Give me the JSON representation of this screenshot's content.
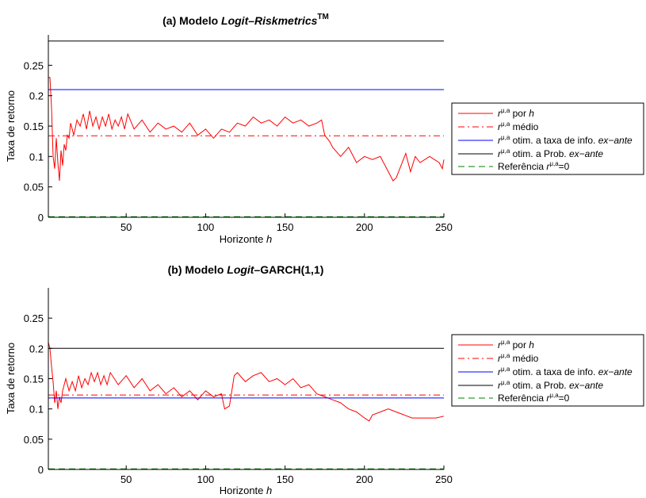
{
  "charts": [
    {
      "title_prefix": "(a) Modelo ",
      "title_italic": "Logit–Riskmetrics",
      "title_suffix": "",
      "title_sup": "TM"
    },
    {
      "title_prefix": "(b) Modelo ",
      "title_italic": "Logit",
      "title_suffix": "–GARCH(1,1)",
      "title_sup": ""
    }
  ],
  "legend": {
    "r_main": "r",
    "r_sup": "μ,a",
    "entries": [
      {
        "pre": "",
        "text": " por ",
        "ital": "h",
        "post": ""
      },
      {
        "pre": "",
        "text": " médio",
        "ital": "",
        "post": ""
      },
      {
        "pre": "",
        "text": " otim. a taxa de info. ",
        "ital": "ex−ante",
        "post": ""
      },
      {
        "pre": "",
        "text": " otim. a Prob. ",
        "ital": "ex−ante",
        "post": ""
      },
      {
        "pre": "Referência ",
        "text": "",
        "ital": "",
        "post": "=0"
      }
    ]
  },
  "colors": {
    "por_h": "#ff0000",
    "medio": "#ff0000",
    "info": "#0000ff",
    "prob": "#000000",
    "ref": "#008000"
  },
  "chart_data": [
    {
      "type": "line",
      "xlabel": "Horizonte",
      "xlabel_italic": "h",
      "ylabel": "Taxa de retorno",
      "xlim": [
        1,
        250
      ],
      "ylim": [
        0,
        0.3
      ],
      "xticks": [
        50,
        100,
        150,
        200,
        250
      ],
      "yticks": [
        0,
        0.05,
        0.1,
        0.15,
        0.2,
        0.25
      ],
      "ytick_labels": [
        "0",
        "0.05",
        "0.1",
        "0.15",
        "0.2",
        "0.25"
      ],
      "series": [
        {
          "key": "por_h",
          "style": "solid",
          "x": [
            1,
            2,
            3,
            4,
            5,
            6,
            7,
            8,
            9,
            10,
            11,
            12,
            13,
            14,
            15,
            17,
            19,
            21,
            23,
            25,
            27,
            29,
            31,
            33,
            35,
            37,
            39,
            41,
            43,
            45,
            47,
            49,
            51,
            55,
            60,
            65,
            70,
            75,
            80,
            85,
            90,
            95,
            100,
            105,
            110,
            115,
            120,
            125,
            130,
            135,
            140,
            145,
            150,
            155,
            160,
            165,
            170,
            173,
            175,
            178,
            180,
            185,
            190,
            195,
            200,
            205,
            210,
            215,
            218,
            220,
            223,
            226,
            229,
            232,
            235,
            238,
            241,
            244,
            247,
            249,
            250
          ],
          "y": [
            0.23,
            0.23,
            0.18,
            0.1,
            0.08,
            0.13,
            0.09,
            0.06,
            0.11,
            0.085,
            0.12,
            0.11,
            0.135,
            0.13,
            0.155,
            0.135,
            0.16,
            0.15,
            0.17,
            0.145,
            0.175,
            0.15,
            0.165,
            0.145,
            0.165,
            0.15,
            0.17,
            0.145,
            0.16,
            0.15,
            0.165,
            0.145,
            0.17,
            0.145,
            0.16,
            0.14,
            0.155,
            0.145,
            0.15,
            0.14,
            0.155,
            0.135,
            0.145,
            0.13,
            0.145,
            0.14,
            0.155,
            0.15,
            0.165,
            0.155,
            0.16,
            0.15,
            0.165,
            0.155,
            0.16,
            0.15,
            0.155,
            0.16,
            0.135,
            0.125,
            0.115,
            0.1,
            0.115,
            0.09,
            0.1,
            0.095,
            0.1,
            0.075,
            0.06,
            0.065,
            0.085,
            0.105,
            0.075,
            0.1,
            0.09,
            0.095,
            0.1,
            0.095,
            0.09,
            0.08,
            0.095
          ]
        },
        {
          "key": "medio",
          "style": "dashdot",
          "x": [
            1,
            250
          ],
          "y": [
            0.134,
            0.134
          ]
        },
        {
          "key": "info",
          "style": "solid",
          "x": [
            1,
            250
          ],
          "y": [
            0.21,
            0.21
          ]
        },
        {
          "key": "prob",
          "style": "solid",
          "x": [
            1,
            250
          ],
          "y": [
            0.29,
            0.29
          ]
        },
        {
          "key": "ref",
          "style": "dashed",
          "x": [
            1,
            250
          ],
          "y": [
            0.001,
            0.001
          ]
        }
      ]
    },
    {
      "type": "line",
      "xlabel": "Horizonte",
      "xlabel_italic": "h",
      "ylabel": "Taxa de retorno",
      "xlim": [
        1,
        250
      ],
      "ylim": [
        0,
        0.3
      ],
      "xticks": [
        50,
        100,
        150,
        200,
        250
      ],
      "yticks": [
        0,
        0.05,
        0.1,
        0.15,
        0.2,
        0.25
      ],
      "ytick_labels": [
        "0",
        "0.05",
        "0.1",
        "0.15",
        "0.2",
        "0.25"
      ],
      "series": [
        {
          "key": "por_h",
          "style": "solid",
          "x": [
            1,
            2,
            3,
            4,
            5,
            6,
            7,
            8,
            9,
            10,
            12,
            14,
            16,
            18,
            20,
            22,
            24,
            26,
            28,
            30,
            32,
            34,
            36,
            38,
            40,
            45,
            50,
            55,
            60,
            65,
            70,
            75,
            80,
            85,
            90,
            95,
            100,
            105,
            110,
            112,
            115,
            118,
            120,
            125,
            130,
            135,
            140,
            145,
            150,
            155,
            160,
            165,
            170,
            175,
            180,
            185,
            190,
            195,
            200,
            203,
            205,
            210,
            215,
            220,
            225,
            230,
            235,
            240,
            245,
            250
          ],
          "y": [
            0.21,
            0.2,
            0.17,
            0.145,
            0.11,
            0.13,
            0.1,
            0.12,
            0.11,
            0.13,
            0.15,
            0.13,
            0.145,
            0.13,
            0.155,
            0.135,
            0.15,
            0.14,
            0.16,
            0.145,
            0.16,
            0.14,
            0.155,
            0.14,
            0.16,
            0.14,
            0.155,
            0.135,
            0.15,
            0.13,
            0.14,
            0.125,
            0.135,
            0.12,
            0.13,
            0.115,
            0.13,
            0.12,
            0.125,
            0.1,
            0.105,
            0.155,
            0.16,
            0.145,
            0.155,
            0.16,
            0.145,
            0.15,
            0.14,
            0.15,
            0.135,
            0.14,
            0.125,
            0.12,
            0.115,
            0.11,
            0.1,
            0.095,
            0.085,
            0.08,
            0.09,
            0.095,
            0.1,
            0.095,
            0.09,
            0.085,
            0.085,
            0.085,
            0.085,
            0.088
          ]
        },
        {
          "key": "medio",
          "style": "dashdot",
          "x": [
            1,
            250
          ],
          "y": [
            0.123,
            0.123
          ]
        },
        {
          "key": "info",
          "style": "solid",
          "x": [
            1,
            250
          ],
          "y": [
            0.118,
            0.118
          ]
        },
        {
          "key": "prob",
          "style": "solid",
          "x": [
            1,
            250
          ],
          "y": [
            0.2,
            0.2
          ]
        },
        {
          "key": "ref",
          "style": "dashed",
          "x": [
            1,
            250
          ],
          "y": [
            0.001,
            0.001
          ]
        }
      ]
    }
  ]
}
